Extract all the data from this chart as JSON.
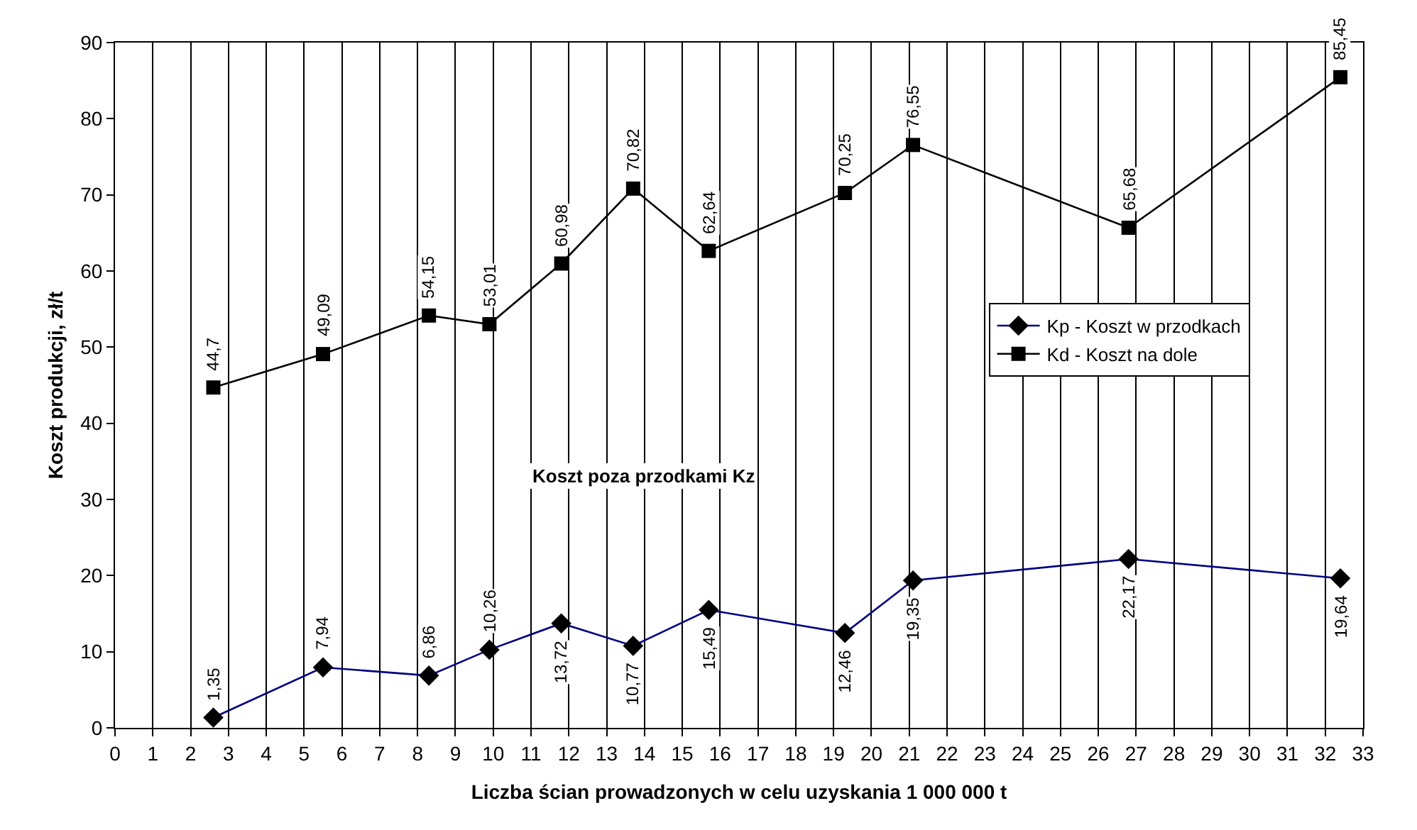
{
  "chart_data": {
    "type": "line",
    "xlabel": "Liczba ścian prowadzonych w celu uzyskania 1 000 000 t",
    "ylabel": "Koszt produkcji, zł/t",
    "x": [
      2.6,
      5.5,
      8.3,
      9.9,
      11.8,
      13.7,
      15.7,
      19.3,
      21.1,
      26.8,
      32.4
    ],
    "series": [
      {
        "name": "Kp - Koszt w przodkach",
        "color": "#000080",
        "marker": "diamond",
        "values": [
          1.35,
          7.94,
          6.86,
          10.26,
          13.72,
          10.77,
          15.49,
          12.46,
          19.35,
          22.17,
          19.64
        ],
        "value_labels": [
          "1,35",
          "7,94",
          "6,86",
          "10,26",
          "13,72",
          "10,77",
          "15,49",
          "12,46",
          "19,35",
          "22,17",
          "19,64"
        ]
      },
      {
        "name": "Kd - Koszt na dole",
        "color": "#000000",
        "marker": "square",
        "values": [
          44.7,
          49.09,
          54.15,
          53.01,
          60.98,
          70.82,
          62.64,
          70.25,
          76.55,
          65.68,
          85.45
        ],
        "value_labels": [
          "44,7",
          "49,09",
          "54,15",
          "53,01",
          "60,98",
          "70,82",
          "62,64",
          "70,25",
          "76,55",
          "65,68",
          "85,45"
        ]
      }
    ],
    "annotations": [
      "Koszt poza przodkami Kz"
    ],
    "xlim": [
      0,
      33
    ],
    "xticks": [
      0,
      1,
      2,
      3,
      4,
      5,
      6,
      7,
      8,
      9,
      10,
      11,
      12,
      13,
      14,
      15,
      16,
      17,
      18,
      19,
      20,
      21,
      22,
      23,
      24,
      25,
      26,
      27,
      28,
      29,
      30,
      31,
      32,
      33
    ],
    "ylim": [
      0,
      90
    ],
    "yticks": [
      0,
      10,
      20,
      30,
      40,
      50,
      60,
      70,
      80,
      90
    ],
    "grid": "x",
    "legend": "right",
    "line_style": "solid"
  }
}
